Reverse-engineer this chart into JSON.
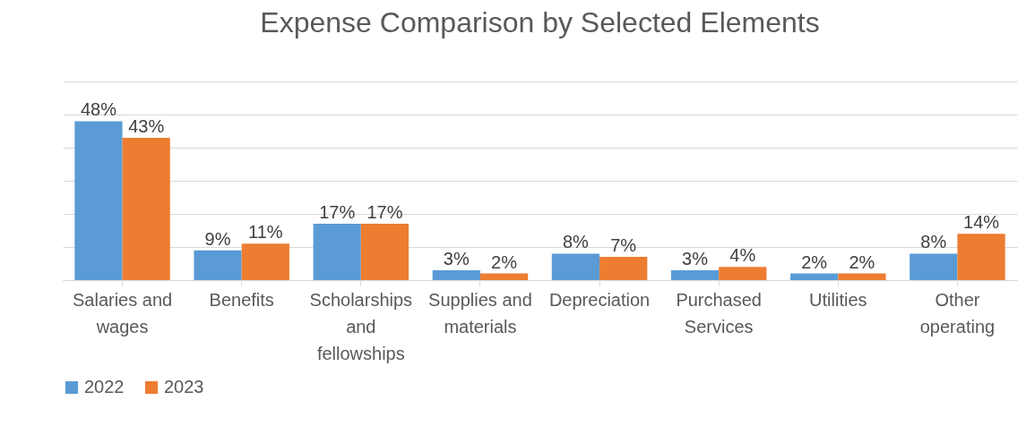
{
  "chart_data": {
    "type": "bar",
    "title": "Expense Comparison by Selected Elements",
    "categories": [
      "Salaries and wages",
      "Benefits",
      "Scholarships and fellowships",
      "Supplies and materials",
      "Depreciation",
      "Purchased Services",
      "Utilities",
      "Other operating"
    ],
    "series": [
      {
        "name": "2022",
        "color": "#5b9bd5",
        "values": [
          48,
          9,
          17,
          3,
          8,
          3,
          2,
          8
        ],
        "value_labels": [
          "48%",
          "9%",
          "17%",
          "3%",
          "8%",
          "3%",
          "2%",
          "8%"
        ]
      },
      {
        "name": "2023",
        "color": "#ed7d31",
        "values": [
          43,
          11,
          17,
          2,
          7,
          4,
          2,
          14
        ],
        "value_labels": [
          "43%",
          "11%",
          "17%",
          "2%",
          "7%",
          "4%",
          "2%",
          "14%"
        ]
      }
    ],
    "ylim": [
      0,
      60
    ],
    "yticks": [
      {
        "value": 0,
        "label": null
      },
      {
        "value": 10,
        "label": null
      },
      {
        "value": 20,
        "label": null
      },
      {
        "value": 30,
        "label": null
      },
      {
        "value": 40,
        "label": null
      },
      {
        "value": 50,
        "label": null
      },
      {
        "value": 60,
        "label": null
      }
    ],
    "tick_labels": "x",
    "grid": "y",
    "legend": "bottom"
  }
}
